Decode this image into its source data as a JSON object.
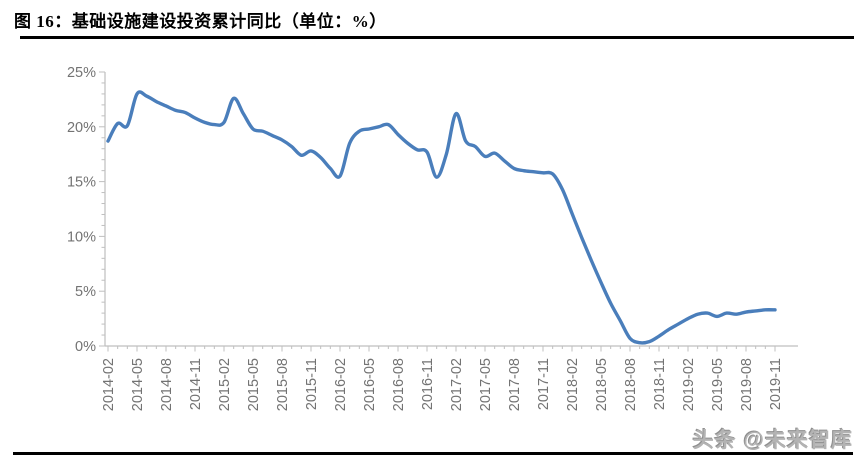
{
  "figure": {
    "title": "图 16：基础设施建设投资累计同比（单位：%）",
    "watermark": "头条 @未来智库"
  },
  "colors": {
    "line": "#4A7EBB",
    "axis": "#BFBFBF",
    "tick_label": "#737373",
    "rule": "#000000",
    "watermark": "#B3B3B3"
  },
  "chart_data": {
    "type": "line",
    "title": "基础设施建设投资累计同比",
    "unit": "%",
    "series_name": "基础设施建设投资累计同比",
    "legend": "none",
    "grid": false,
    "ylim": [
      0,
      25
    ],
    "y_major_step": 5,
    "y_minor_step": 1,
    "y_ticks": [
      "0%",
      "5%",
      "10%",
      "15%",
      "20%",
      "25%"
    ],
    "x_label_every": 3,
    "x_tick_labels_shown": [
      "2014-02",
      "2014-05",
      "2014-08",
      "2014-11",
      "2015-02",
      "2015-05",
      "2015-08",
      "2015-11",
      "2016-02",
      "2016-05",
      "2016-08",
      "2016-11",
      "2017-02",
      "2017-05",
      "2017-08",
      "2017-11",
      "2018-02",
      "2018-05",
      "2018-08",
      "2018-11",
      "2019-02",
      "2019-05",
      "2019-08",
      "2019-11"
    ],
    "x": [
      "2014-02",
      "2014-03",
      "2014-04",
      "2014-05",
      "2014-06",
      "2014-07",
      "2014-08",
      "2014-09",
      "2014-10",
      "2014-11",
      "2014-12",
      "2015-01",
      "2015-02",
      "2015-03",
      "2015-04",
      "2015-05",
      "2015-06",
      "2015-07",
      "2015-08",
      "2015-09",
      "2015-10",
      "2015-11",
      "2015-12",
      "2016-01",
      "2016-02",
      "2016-03",
      "2016-04",
      "2016-05",
      "2016-06",
      "2016-07",
      "2016-08",
      "2016-09",
      "2016-10",
      "2016-11",
      "2016-12",
      "2017-01",
      "2017-02",
      "2017-03",
      "2017-04",
      "2017-05",
      "2017-06",
      "2017-07",
      "2017-08",
      "2017-09",
      "2017-10",
      "2017-11",
      "2017-12",
      "2018-01",
      "2018-02",
      "2018-03",
      "2018-04",
      "2018-05",
      "2018-06",
      "2018-07",
      "2018-08",
      "2018-09",
      "2018-10",
      "2018-11",
      "2018-12",
      "2019-01",
      "2019-02",
      "2019-03",
      "2019-04",
      "2019-05",
      "2019-06",
      "2019-07",
      "2019-08",
      "2019-09",
      "2019-10",
      "2019-11"
    ],
    "values": [
      18.7,
      20.3,
      20.1,
      23.0,
      22.8,
      22.3,
      21.9,
      21.5,
      21.3,
      20.8,
      20.4,
      20.2,
      20.4,
      22.6,
      21.2,
      19.8,
      19.6,
      19.2,
      18.8,
      18.2,
      17.4,
      17.8,
      17.2,
      16.2,
      15.5,
      18.5,
      19.6,
      19.8,
      20.0,
      20.2,
      19.3,
      18.5,
      17.9,
      17.7,
      15.4,
      17.5,
      21.2,
      18.7,
      18.2,
      17.3,
      17.6,
      16.9,
      16.2,
      16.0,
      15.9,
      15.8,
      15.7,
      14.3,
      12.1,
      9.9,
      7.8,
      5.8,
      3.9,
      2.3,
      0.7,
      0.3,
      0.4,
      0.9,
      1.5,
      2.0,
      2.5,
      2.9,
      3.0,
      2.7,
      3.0,
      2.9,
      3.1,
      3.2,
      3.3,
      3.3
    ]
  }
}
